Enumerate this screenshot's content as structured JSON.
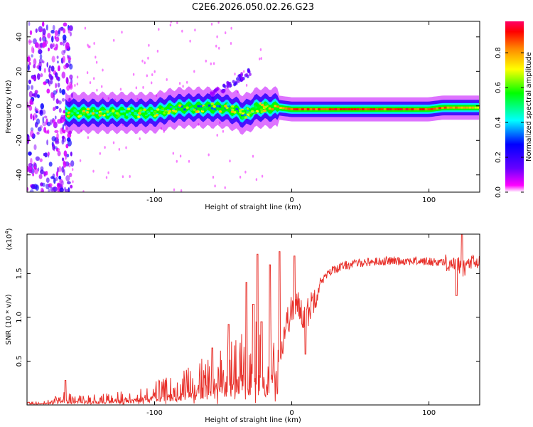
{
  "title": "C2E6.2026.050.02.26.G23",
  "colors": {
    "snr_line": "#e8302a",
    "axis": "#000000",
    "background": "#ffffff",
    "colorbar": [
      "#ffffff",
      "#ff00ff",
      "#6600ff",
      "#0000ff",
      "#00ffff",
      "#00ff00",
      "#ffff00",
      "#ff8800",
      "#ff0000",
      "#ff0066"
    ]
  },
  "chart_data": [
    {
      "type": "heatmap",
      "title": "C2E6.2026.050.02.26.G23",
      "xlabel": "Height of straight line (km)",
      "ylabel": "Frequency (Hz)",
      "xlim": [
        -193,
        137
      ],
      "ylim": [
        -50,
        49
      ],
      "xticks": [
        -100,
        0,
        100
      ],
      "xtick_labels": [
        "-100",
        "0",
        "100"
      ],
      "yticks": [
        -40,
        -20,
        0,
        20,
        40
      ],
      "ytick_labels": [
        "-40",
        "-20",
        "0",
        "20",
        "40"
      ],
      "colorbar": {
        "label": "Normalized spectral amplitude",
        "range": [
          0.0,
          0.98
        ],
        "ticks": [
          0.0,
          0.2,
          0.4,
          0.6,
          0.8
        ],
        "tick_labels": [
          "0.0",
          "0.2",
          "0.4",
          "0.6",
          "0.8"
        ]
      },
      "ridge": {
        "x": [
          -165,
          -140,
          -120,
          -100,
          -90,
          -80,
          -70,
          -60,
          -50,
          -40,
          -35,
          -30,
          -25,
          -20,
          -10,
          0,
          20,
          50,
          80,
          100,
          110,
          120,
          130,
          137
        ],
        "y": [
          -4,
          -4,
          -4,
          -4,
          -2,
          -1,
          -1,
          -1,
          -1,
          -3,
          -5,
          -3,
          -1,
          -1,
          -1,
          -2,
          -2,
          -2,
          -2,
          -2,
          -1,
          -1,
          -1,
          -1
        ],
        "peak": [
          0.5,
          0.45,
          0.45,
          0.45,
          0.4,
          0.35,
          0.35,
          0.35,
          0.35,
          0.35,
          0.35,
          0.45,
          0.6,
          0.8,
          0.85,
          0.9,
          0.95,
          0.95,
          0.95,
          0.95,
          0.9,
          0.85,
          0.8,
          0.75
        ]
      },
      "description_features": {
        "noise_region_x": [
          -193,
          -160
        ],
        "sidelobe_x": [
          -60,
          -30
        ],
        "sidelobe_y": [
          5,
          20
        ]
      }
    },
    {
      "type": "line",
      "xlabel": "Height of straight line (km)",
      "ylabel": "SNR (10 * v/v)",
      "y_multiplier_label": "(x10",
      "y_multiplier_exp": "4",
      "xlim": [
        -193,
        137
      ],
      "ylim": [
        0.0,
        1.95
      ],
      "xticks": [
        -100,
        0,
        100
      ],
      "xtick_labels": [
        "-100",
        "0",
        "100"
      ],
      "yticks": [
        0.5,
        1.0,
        1.5
      ],
      "ytick_labels": [
        "0.5",
        "1.0",
        "1.5"
      ],
      "series": [
        {
          "name": "SNR",
          "x_envelope": [
            -193,
            -180,
            -170,
            -165,
            -160,
            -150,
            -140,
            -130,
            -120,
            -110,
            -100,
            -90,
            -80,
            -70,
            -60,
            -50,
            -40,
            -35,
            -30,
            -25,
            -20,
            -15,
            -10,
            -8,
            -5,
            0,
            5,
            10,
            15,
            20,
            30,
            40,
            50,
            60,
            70,
            80,
            90,
            100,
            110,
            115,
            120,
            123,
            125,
            128,
            130,
            137
          ],
          "y_envelope": [
            0.02,
            0.03,
            0.06,
            0.1,
            0.06,
            0.06,
            0.07,
            0.08,
            0.1,
            0.12,
            0.15,
            0.18,
            0.22,
            0.28,
            0.32,
            0.38,
            0.45,
            0.5,
            0.5,
            0.55,
            0.5,
            0.5,
            0.5,
            0.6,
            0.9,
            1.1,
            1.15,
            1.0,
            1.2,
            1.4,
            1.55,
            1.6,
            1.63,
            1.64,
            1.65,
            1.65,
            1.65,
            1.64,
            1.64,
            1.63,
            1.62,
            1.6,
            1.55,
            1.62,
            1.63,
            1.63
          ],
          "spikes": [
            {
              "x": -165,
              "y": 0.28
            },
            {
              "x": -58,
              "y": 0.65
            },
            {
              "x": -46,
              "y": 0.92
            },
            {
              "x": -33,
              "y": 1.4
            },
            {
              "x": -28,
              "y": 1.15
            },
            {
              "x": -25,
              "y": 1.72
            },
            {
              "x": -22,
              "y": 0.95
            },
            {
              "x": -16,
              "y": 1.6
            },
            {
              "x": -9,
              "y": 1.75
            },
            {
              "x": 2,
              "y": 1.7
            },
            {
              "x": 10,
              "y": 0.58
            },
            {
              "x": 120,
              "y": 1.25
            },
            {
              "x": 124,
              "y": 1.95
            }
          ]
        }
      ]
    }
  ]
}
